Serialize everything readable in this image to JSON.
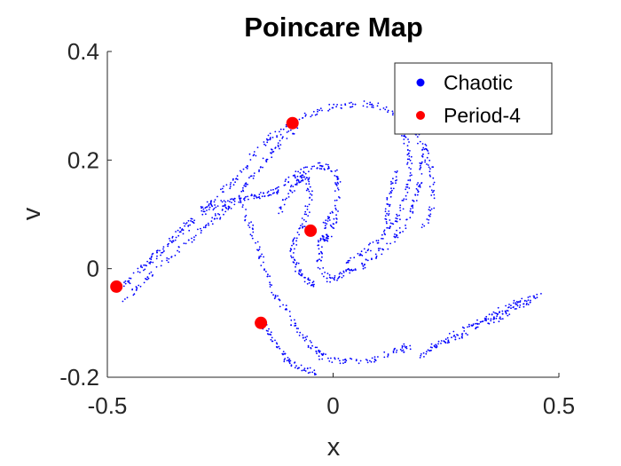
{
  "chart_data": {
    "type": "scatter",
    "title": "Poincare Map",
    "xlabel": "x",
    "ylabel": "v",
    "xlim": [
      -0.5,
      0.5
    ],
    "ylim": [
      -0.2,
      0.4
    ],
    "xticks": [
      -0.5,
      0,
      0.5
    ],
    "xtick_labels": [
      "-0.5",
      "0",
      "0.5"
    ],
    "yticks": [
      -0.2,
      0,
      0.2,
      0.4
    ],
    "ytick_labels": [
      "-0.2",
      "0",
      "0.2",
      "0.4"
    ],
    "grid": false,
    "legend_position": "top-right",
    "series": [
      {
        "name": "Chaotic",
        "color": "#0000ff",
        "marker": "dot",
        "curves": [
          [
            [
              -0.48,
              -0.04
            ],
            [
              -0.45,
              -0.02
            ],
            [
              -0.4,
              0.02
            ],
            [
              -0.35,
              0.06
            ],
            [
              -0.3,
              0.1
            ],
            [
              -0.26,
              0.13
            ],
            [
              -0.22,
              0.16
            ],
            [
              -0.18,
              0.205
            ],
            [
              -0.14,
              0.24
            ],
            [
              -0.1,
              0.265
            ],
            [
              -0.05,
              0.285
            ],
            [
              0.0,
              0.298
            ],
            [
              0.05,
              0.305
            ],
            [
              0.1,
              0.3
            ],
            [
              0.15,
              0.28
            ],
            [
              0.19,
              0.24
            ],
            [
              0.22,
              0.18
            ],
            [
              0.22,
              0.12
            ],
            [
              0.2,
              0.075
            ]
          ],
          [
            [
              -0.46,
              -0.055
            ],
            [
              -0.42,
              -0.025
            ],
            [
              -0.37,
              0.015
            ],
            [
              -0.32,
              0.05
            ],
            [
              -0.28,
              0.08
            ],
            [
              -0.25,
              0.1
            ],
            [
              -0.22,
              0.12
            ],
            [
              -0.19,
              0.16
            ],
            [
              -0.15,
              0.2
            ],
            [
              -0.12,
              0.23
            ],
            [
              -0.08,
              0.26
            ]
          ],
          [
            [
              -0.42,
              0.0
            ],
            [
              -0.38,
              0.035
            ],
            [
              -0.33,
              0.07
            ],
            [
              -0.28,
              0.11
            ],
            [
              -0.25,
              0.12
            ],
            [
              -0.22,
              0.125
            ],
            [
              -0.19,
              0.13
            ],
            [
              -0.16,
              0.135
            ],
            [
              -0.13,
              0.14
            ],
            [
              -0.1,
              0.16
            ],
            [
              -0.07,
              0.18
            ],
            [
              -0.03,
              0.19
            ],
            [
              0.0,
              0.185
            ],
            [
              0.01,
              0.16
            ],
            [
              0.01,
              0.1
            ],
            [
              -0.01,
              0.06
            ],
            [
              -0.02,
              0.05
            ]
          ],
          [
            [
              -0.2,
              0.12
            ],
            [
              -0.18,
              0.07
            ],
            [
              -0.16,
              0.02
            ],
            [
              -0.14,
              -0.03
            ],
            [
              -0.11,
              -0.07
            ],
            [
              -0.08,
              -0.11
            ],
            [
              -0.05,
              -0.14
            ],
            [
              -0.03,
              -0.16
            ],
            [
              0.0,
              -0.17
            ],
            [
              0.05,
              -0.17
            ],
            [
              0.1,
              -0.165
            ],
            [
              0.15,
              -0.15
            ],
            [
              0.17,
              -0.14
            ]
          ],
          [
            [
              -0.16,
              -0.1
            ],
            [
              -0.14,
              -0.12
            ],
            [
              -0.12,
              -0.15
            ],
            [
              -0.1,
              -0.17
            ],
            [
              -0.07,
              -0.185
            ],
            [
              -0.04,
              -0.19
            ]
          ],
          [
            [
              0.0,
              0.11
            ],
            [
              -0.02,
              0.08
            ],
            [
              -0.03,
              0.04
            ],
            [
              -0.03,
              0.0
            ],
            [
              -0.01,
              -0.02
            ],
            [
              0.02,
              -0.01
            ],
            [
              0.05,
              0.0
            ],
            [
              0.09,
              0.02
            ],
            [
              0.13,
              0.05
            ],
            [
              0.16,
              0.08
            ],
            [
              0.18,
              0.12
            ],
            [
              0.19,
              0.16
            ],
            [
              0.2,
              0.2
            ],
            [
              0.21,
              0.23
            ]
          ],
          [
            [
              0.15,
              0.25
            ],
            [
              0.17,
              0.22
            ],
            [
              0.17,
              0.18
            ],
            [
              0.16,
              0.13
            ],
            [
              0.14,
              0.09
            ],
            [
              0.11,
              0.06
            ],
            [
              0.07,
              0.03
            ],
            [
              0.03,
              0.01
            ]
          ],
          [
            [
              -0.12,
              0.1
            ],
            [
              -0.1,
              0.14
            ],
            [
              -0.08,
              0.16
            ],
            [
              -0.06,
              0.17
            ],
            [
              -0.05,
              0.14
            ],
            [
              -0.06,
              0.1
            ],
            [
              -0.08,
              0.06
            ],
            [
              -0.09,
              0.03
            ],
            [
              -0.08,
              0.0
            ],
            [
              -0.06,
              -0.02
            ],
            [
              -0.04,
              -0.03
            ]
          ],
          [
            [
              0.19,
              -0.16
            ],
            [
              0.24,
              -0.14
            ],
            [
              0.29,
              -0.12
            ],
            [
              0.33,
              -0.1
            ],
            [
              0.37,
              -0.09
            ],
            [
              0.4,
              -0.075
            ],
            [
              0.43,
              -0.06
            ],
            [
              0.46,
              -0.05
            ]
          ],
          [
            [
              0.21,
              -0.15
            ],
            [
              0.26,
              -0.125
            ],
            [
              0.31,
              -0.105
            ],
            [
              0.35,
              -0.085
            ],
            [
              0.39,
              -0.07
            ],
            [
              0.42,
              -0.05
            ]
          ],
          [
            [
              0.12,
              0.07
            ],
            [
              0.12,
              0.11
            ],
            [
              0.13,
              0.15
            ],
            [
              0.14,
              0.18
            ]
          ]
        ]
      },
      {
        "name": "Period-4",
        "color": "#ff0000",
        "marker": "filled-circle",
        "points": [
          [
            -0.09,
            0.268
          ],
          [
            -0.05,
            0.07
          ],
          [
            -0.48,
            -0.033
          ],
          [
            -0.16,
            -0.1
          ]
        ]
      }
    ]
  }
}
